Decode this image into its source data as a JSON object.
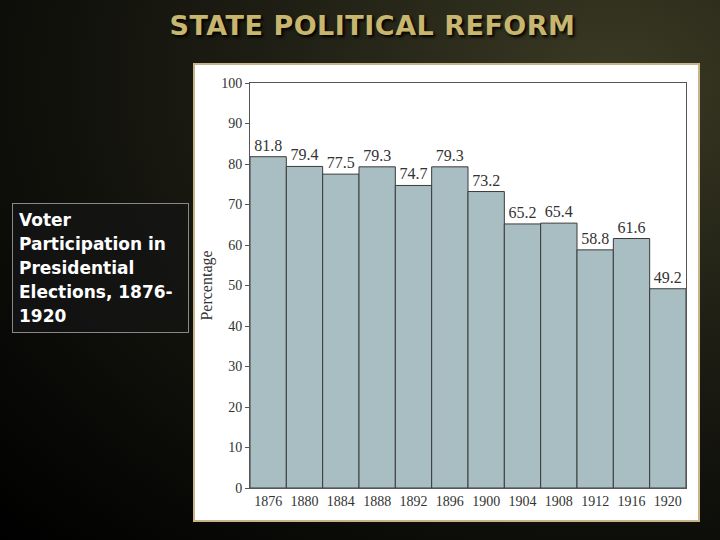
{
  "slide_title": "STATE POLITICAL REFORM",
  "chart_data": {
    "type": "bar",
    "title": "Voter Participation in Presidential Elections, 1876-1920",
    "y_label": "Percentage",
    "categories": [
      "1876",
      "1880",
      "1884",
      "1888",
      "1892",
      "1896",
      "1900",
      "1904",
      "1908",
      "1912",
      "1916",
      "1920"
    ],
    "values": [
      81.8,
      79.4,
      77.5,
      79.3,
      74.7,
      79.3,
      73.2,
      65.2,
      65.4,
      58.8,
      61.6,
      49.2
    ],
    "color": "#a9bec3",
    "ylim": [
      0,
      100
    ],
    "yticks": [
      0,
      10,
      20,
      30,
      40,
      50,
      60,
      70,
      80,
      90,
      100
    ],
    "grid": false,
    "data_labels": true
  }
}
